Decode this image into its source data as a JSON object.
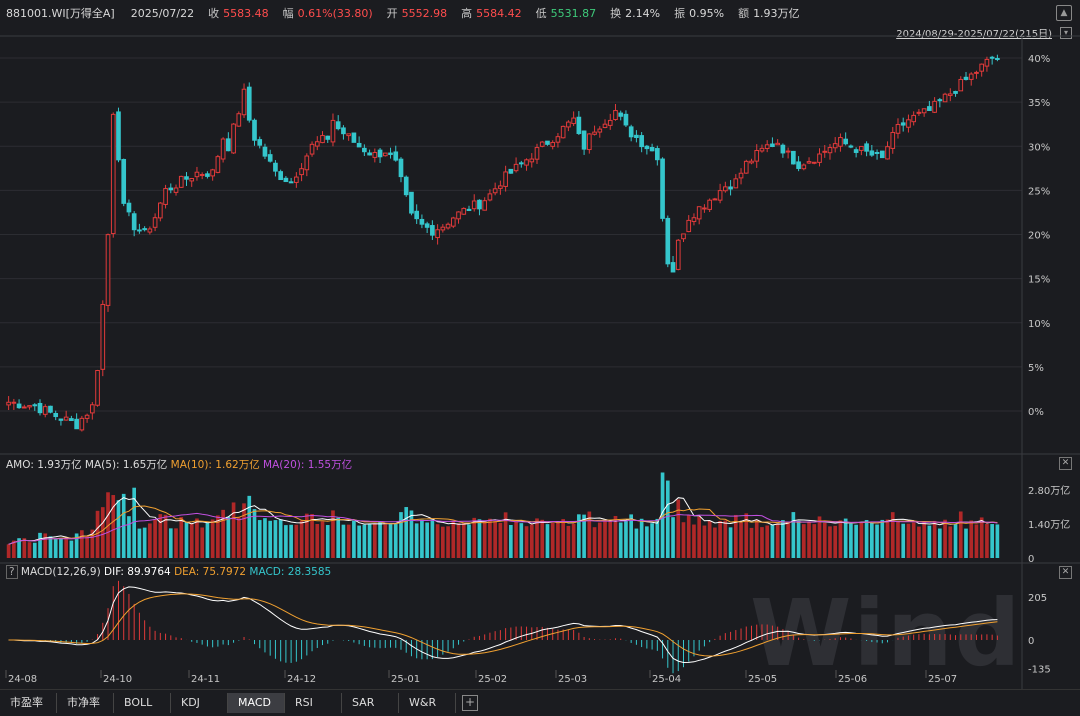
{
  "header": {
    "code": "881001.WI[万得全A]",
    "date": "2025/07/22",
    "close_label": "收",
    "close_value": "5583.48",
    "amp_label": "幅",
    "amp_value": "0.61%(33.80)",
    "open_label": "开",
    "open_value": "5552.98",
    "high_label": "高",
    "high_value": "5584.42",
    "low_label": "低",
    "low_value": "5531.87",
    "turnover_label": "换",
    "turnover_value": "2.14%",
    "swing_label": "振",
    "swing_value": "0.95%",
    "amount_label": "额",
    "amount_value": "1.93万亿",
    "range": "2024/08/29-2025/07/22(215日)"
  },
  "volume_panel": {
    "amo": "AMO: 1.93万亿",
    "ma5": "MA(5): 1.65万亿",
    "ma10": "MA(10): 1.62万亿",
    "ma20": "MA(20): 1.55万亿",
    "colors": {
      "ma5": "#ffffff",
      "ma10": "#f0a030",
      "ma20": "#c050e0"
    }
  },
  "macd_panel": {
    "title": "MACD(12,26,9)",
    "dif": "DIF: 89.9764",
    "dea": "DEA: 75.7972",
    "macd": "MACD: 28.3585",
    "help": "?"
  },
  "tabs": [
    "市盈率",
    "市净率",
    "BOLL",
    "KDJ",
    "MACD",
    "RSI",
    "SAR",
    "W&R"
  ],
  "active_tab": "MACD",
  "watermark": "Wind",
  "colors": {
    "up": "#e03a3a",
    "down": "#35c6cc",
    "bg": "#1b1c20",
    "grid": "#2c2d32"
  },
  "chart_data": {
    "type": "candlestick",
    "ytick_labels": [
      "40%",
      "35%",
      "30%",
      "25%",
      "20%",
      "15%",
      "10%",
      "5%",
      "0%"
    ],
    "volume_tick_labels": [
      "2.80万亿",
      "1.40万亿",
      "0"
    ],
    "macd_tick_labels": [
      "205",
      "0",
      "-135"
    ],
    "x_tick_labels": [
      "24-08",
      "24-10",
      "24-11",
      "24-12",
      "25-01",
      "25-02",
      "25-03",
      "25-04",
      "25-05",
      "25-06",
      "25-07"
    ],
    "pct_points": [
      [
        0,
        1
      ],
      [
        5,
        0.6
      ],
      [
        10,
        -0.8
      ],
      [
        13,
        -1.5
      ],
      [
        16,
        0.5
      ],
      [
        17,
        5
      ],
      [
        18,
        12
      ],
      [
        19,
        20
      ],
      [
        20,
        34
      ],
      [
        21,
        29
      ],
      [
        22,
        23
      ],
      [
        24,
        21
      ],
      [
        26,
        20
      ],
      [
        28,
        22
      ],
      [
        30,
        25
      ],
      [
        33,
        26
      ],
      [
        36,
        27
      ],
      [
        39,
        27
      ],
      [
        41,
        31
      ],
      [
        42,
        30
      ],
      [
        44,
        34
      ],
      [
        45,
        36
      ],
      [
        46,
        33
      ],
      [
        47,
        31
      ],
      [
        48,
        30
      ],
      [
        51,
        27
      ],
      [
        54,
        26
      ],
      [
        56,
        28
      ],
      [
        58,
        30
      ],
      [
        61,
        31
      ],
      [
        62,
        33
      ],
      [
        63,
        32
      ],
      [
        65,
        31
      ],
      [
        67,
        30
      ],
      [
        70,
        29
      ],
      [
        72,
        29.5
      ],
      [
        74,
        28
      ],
      [
        75,
        26
      ],
      [
        77,
        22
      ],
      [
        79,
        21
      ],
      [
        81,
        20.5
      ],
      [
        83,
        21
      ],
      [
        85,
        22
      ],
      [
        88,
        23
      ],
      [
        90,
        23.5
      ],
      [
        92,
        24.5
      ],
      [
        94,
        26
      ],
      [
        96,
        27
      ],
      [
        98,
        28
      ],
      [
        100,
        29
      ],
      [
        102,
        30
      ],
      [
        104,
        31
      ],
      [
        106,
        32
      ],
      [
        108,
        33
      ],
      [
        109,
        31
      ],
      [
        110,
        30
      ],
      [
        112,
        32
      ],
      [
        114,
        33
      ],
      [
        116,
        34
      ],
      [
        117,
        33
      ],
      [
        118,
        32
      ],
      [
        120,
        31
      ],
      [
        122,
        30
      ],
      [
        124,
        29
      ],
      [
        125,
        22
      ],
      [
        126,
        17
      ],
      [
        127,
        16
      ],
      [
        128,
        19
      ],
      [
        130,
        22
      ],
      [
        132,
        23
      ],
      [
        134,
        24
      ],
      [
        136,
        25
      ],
      [
        137,
        25.5
      ],
      [
        139,
        26
      ],
      [
        141,
        28
      ],
      [
        143,
        29
      ],
      [
        145,
        30
      ],
      [
        147,
        30.5
      ],
      [
        149,
        29
      ],
      [
        151,
        28
      ],
      [
        153,
        28.5
      ],
      [
        155,
        29
      ],
      [
        157,
        30
      ],
      [
        159,
        30.5
      ],
      [
        161,
        30
      ],
      [
        163,
        29.5
      ],
      [
        165,
        29
      ],
      [
        167,
        28.5
      ],
      [
        168,
        30
      ],
      [
        170,
        32
      ],
      [
        172,
        33
      ],
      [
        174,
        33.5
      ],
      [
        176,
        34
      ],
      [
        178,
        35
      ],
      [
        180,
        36
      ],
      [
        182,
        37
      ],
      [
        184,
        38
      ],
      [
        186,
        39
      ],
      [
        188,
        40
      ]
    ],
    "candle_count": 190,
    "volume_ma_approx": {
      "ma5": 1.65,
      "ma10": 1.62,
      "ma20": 1.55,
      "unit": "万亿"
    }
  }
}
